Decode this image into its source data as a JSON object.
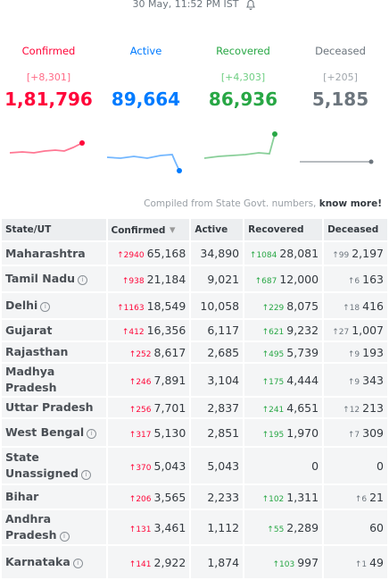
{
  "header": {
    "timestamp": "30 May, 11:52 PM IST"
  },
  "cards": [
    {
      "label": "Confirmed",
      "delta": "[+8,301]",
      "total": "1,81,796",
      "color": "#ff073a",
      "pale": "#ff6b87"
    },
    {
      "label": "Active",
      "delta": null,
      "total": "89,664",
      "color": "#007bff",
      "pale": "#4da3ff"
    },
    {
      "label": "Recovered",
      "delta": "[+4,303]",
      "total": "86,936",
      "color": "#28a745",
      "pale": "#6fcf83"
    },
    {
      "label": "Deceased",
      "delta": "[+205]",
      "total": "5,185",
      "color": "#6c757d",
      "pale": "#a0a6ac"
    }
  ],
  "note": {
    "text": "Compiled from State Govt. numbers, ",
    "link": "know more!"
  },
  "table": {
    "headers": [
      "State/UT",
      "Confirmed",
      "Active",
      "Recovered",
      "Deceased"
    ],
    "rows": [
      {
        "state": "Maharashtra",
        "info": false,
        "confirmed_delta": "2940",
        "confirmed": "65,168",
        "active": "34,890",
        "recovered_delta": "1084",
        "recovered": "28,081",
        "deceased_delta": "99",
        "deceased": "2,197"
      },
      {
        "state": "Tamil Nadu",
        "info": true,
        "confirmed_delta": "938",
        "confirmed": "21,184",
        "active": "9,021",
        "recovered_delta": "687",
        "recovered": "12,000",
        "deceased_delta": "6",
        "deceased": "163"
      },
      {
        "state": "Delhi",
        "info": true,
        "confirmed_delta": "1163",
        "confirmed": "18,549",
        "active": "10,058",
        "recovered_delta": "229",
        "recovered": "8,075",
        "deceased_delta": "18",
        "deceased": "416"
      },
      {
        "state": "Gujarat",
        "info": false,
        "confirmed_delta": "412",
        "confirmed": "16,356",
        "active": "6,117",
        "recovered_delta": "621",
        "recovered": "9,232",
        "deceased_delta": "27",
        "deceased": "1,007"
      },
      {
        "state": "Rajasthan",
        "info": false,
        "confirmed_delta": "252",
        "confirmed": "8,617",
        "active": "2,685",
        "recovered_delta": "495",
        "recovered": "5,739",
        "deceased_delta": "9",
        "deceased": "193"
      },
      {
        "state": "Madhya Pradesh",
        "info": false,
        "confirmed_delta": "246",
        "confirmed": "7,891",
        "active": "3,104",
        "recovered_delta": "175",
        "recovered": "4,444",
        "deceased_delta": "9",
        "deceased": "343"
      },
      {
        "state": "Uttar Pradesh",
        "info": false,
        "confirmed_delta": "256",
        "confirmed": "7,701",
        "active": "2,837",
        "recovered_delta": "241",
        "recovered": "4,651",
        "deceased_delta": "12",
        "deceased": "213"
      },
      {
        "state": "West Bengal",
        "info": true,
        "confirmed_delta": "317",
        "confirmed": "5,130",
        "active": "2,851",
        "recovered_delta": "195",
        "recovered": "1,970",
        "deceased_delta": "7",
        "deceased": "309"
      },
      {
        "state": "State Unassigned",
        "info": true,
        "confirmed_delta": "370",
        "confirmed": "5,043",
        "active": "5,043",
        "recovered_delta": null,
        "recovered": "0",
        "deceased_delta": null,
        "deceased": "0"
      },
      {
        "state": "Bihar",
        "info": false,
        "confirmed_delta": "206",
        "confirmed": "3,565",
        "active": "2,233",
        "recovered_delta": "102",
        "recovered": "1,311",
        "deceased_delta": "6",
        "deceased": "21"
      },
      {
        "state": "Andhra Pradesh",
        "info": true,
        "confirmed_delta": "131",
        "confirmed": "3,461",
        "active": "1,112",
        "recovered_delta": "55",
        "recovered": "2,289",
        "deceased_delta": null,
        "deceased": "60"
      },
      {
        "state": "Karnataka",
        "info": true,
        "confirmed_delta": "141",
        "confirmed": "2,922",
        "active": "1,874",
        "recovered_delta": "103",
        "recovered": "997",
        "deceased_delta": "1",
        "deceased": "49"
      }
    ]
  }
}
